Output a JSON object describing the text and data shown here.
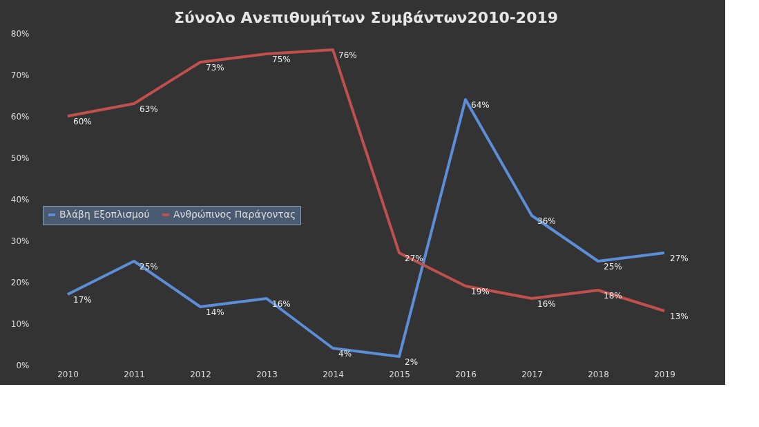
{
  "chart_data": {
    "type": "line",
    "title": "Σύνολο Ανεπιθυμήτων Συμβάντων2010-2019",
    "categories": [
      "2010",
      "2011",
      "2012",
      "2013",
      "2014",
      "2015",
      "2016",
      "2017",
      "2018",
      "2019"
    ],
    "series": [
      {
        "name": "Βλάβη Εξοπλισμού",
        "color": "#5b8ed6",
        "values": [
          17,
          25,
          14,
          16,
          4,
          2,
          64,
          36,
          25,
          27
        ],
        "value_labels": [
          "17%",
          "25%",
          "14%",
          "16%",
          "4%",
          "2%",
          "64%",
          "36%",
          "25%",
          "27%"
        ]
      },
      {
        "name": "Ανθρώπινος Παράγοντας",
        "color": "#c0504d",
        "values": [
          60,
          63,
          73,
          75,
          76,
          27,
          19,
          16,
          18,
          13
        ],
        "value_labels": [
          "60%",
          "63%",
          "73%",
          "75%",
          "76%",
          "27%",
          "19%",
          "16%",
          "18%",
          "13%"
        ]
      }
    ],
    "ylim": [
      0,
      80
    ],
    "yticks": [
      {
        "value": 0,
        "label": "0%"
      },
      {
        "value": 10,
        "label": "10%"
      },
      {
        "value": 20,
        "label": "20%"
      },
      {
        "value": 30,
        "label": "30%"
      },
      {
        "value": 40,
        "label": "40%"
      },
      {
        "value": 50,
        "label": "50%"
      },
      {
        "value": 60,
        "label": "60%"
      },
      {
        "value": 70,
        "label": "70%"
      },
      {
        "value": 80,
        "label": "80%"
      }
    ],
    "legend": "left",
    "grid": false,
    "marker": "none",
    "line_style": "solid"
  }
}
